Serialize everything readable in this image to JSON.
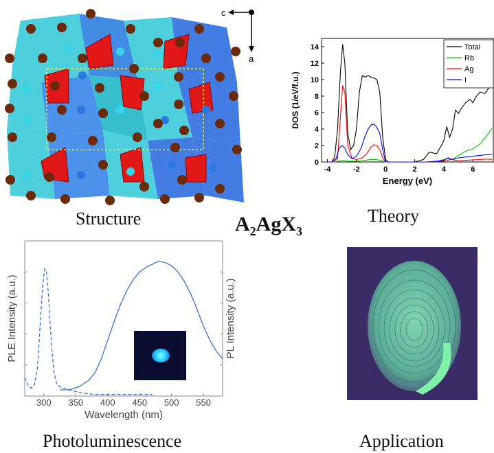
{
  "formula": {
    "base1": "A",
    "sub1": "2",
    "base2": "AgX",
    "sub2": "3"
  },
  "captions": {
    "structure": "Structure",
    "theory": "Theory",
    "photoluminescence": "Photoluminescence",
    "application": "Application"
  },
  "structure": {
    "axis_c": "c",
    "axis_a": "a"
  },
  "chart_data": [
    {
      "type": "line",
      "xlabel": "Energy (eV)",
      "ylabel": "DOS (1/eV/f.u.)",
      "xlim": [
        -4.4,
        7.4
      ],
      "ylim": [
        0,
        15
      ],
      "xticks": [
        -4,
        -2,
        0,
        2,
        4,
        6
      ],
      "yticks": [
        0,
        2,
        4,
        6,
        8,
        10,
        12,
        14
      ],
      "legend_position": "top-right",
      "series": [
        {
          "name": "Total",
          "color": "#000000",
          "x": [
            -4.2,
            -3.7,
            -3.5,
            -3.3,
            -3.1,
            -2.95,
            -2.8,
            -2.6,
            -2.4,
            -2.2,
            -2.0,
            -1.8,
            -1.6,
            -1.4,
            -1.2,
            -1.0,
            -0.8,
            -0.6,
            -0.4,
            -0.2,
            0.0,
            0.2,
            1.0,
            2.0,
            2.6,
            3.0,
            3.5,
            3.8,
            4.0,
            4.2,
            4.4,
            4.6,
            4.8,
            5.0,
            5.2,
            5.5,
            5.8,
            6.0,
            6.2,
            6.5,
            6.8,
            7.1,
            7.3
          ],
          "y": [
            0,
            0,
            0.6,
            4,
            11,
            14.3,
            12,
            3.5,
            1.5,
            2,
            4,
            8.5,
            10.5,
            10.3,
            10.5,
            10.3,
            10.2,
            10.0,
            8.5,
            3,
            0.3,
            0,
            0,
            0,
            0.3,
            1.2,
            1.0,
            1.9,
            2.6,
            4.3,
            3.0,
            4.0,
            6.3,
            5.9,
            6.5,
            7.2,
            7.6,
            7.2,
            7.9,
            8.5,
            8.3,
            9.0,
            9.1
          ]
        },
        {
          "name": "Rb",
          "color": "#00c000",
          "x": [
            -4.2,
            -3.5,
            -3.2,
            -2.9,
            -2.6,
            -2.2,
            -1.8,
            -1.4,
            -1.0,
            -0.6,
            -0.2,
            0.0,
            2.8,
            3.6,
            4.2,
            4.6,
            5.0,
            5.5,
            6.0,
            6.5,
            7.0,
            7.3
          ],
          "y": [
            0,
            0,
            0.1,
            0.2,
            0.1,
            0.1,
            0.1,
            0.2,
            0.3,
            0.3,
            0.1,
            0,
            0,
            0.1,
            0.4,
            0.3,
            0.8,
            1.3,
            1.6,
            2.2,
            3.3,
            4.1
          ]
        },
        {
          "name": "Ag",
          "color": "#ff0000",
          "x": [
            -4.2,
            -3.6,
            -3.3,
            -3.1,
            -2.95,
            -2.8,
            -2.6,
            -2.3,
            -2.0,
            -1.6,
            -1.3,
            -1.0,
            -0.8,
            -0.6,
            -0.4,
            -0.2,
            0.0,
            2.8,
            3.5,
            4.0,
            4.5,
            5.0,
            5.5,
            6.0,
            6.5,
            7.0,
            7.3
          ],
          "y": [
            0,
            0,
            0.4,
            5.5,
            9.3,
            8.5,
            2,
            0.4,
            0.3,
            0.5,
            1,
            1.8,
            2.1,
            2.0,
            1.5,
            0.5,
            0,
            0,
            0.05,
            0.1,
            0.3,
            0.15,
            0.2,
            0.25,
            0.3,
            0.35,
            0.3
          ]
        },
        {
          "name": "I",
          "color": "#0000ff",
          "x": [
            -4.2,
            -3.7,
            -3.4,
            -3.2,
            -3.0,
            -2.8,
            -2.6,
            -2.3,
            -2.0,
            -1.7,
            -1.4,
            -1.2,
            -1.0,
            -0.8,
            -0.6,
            -0.4,
            -0.2,
            0.0,
            2.8,
            3.5,
            4.0,
            4.3,
            4.6,
            5.0,
            5.5,
            6.0,
            6.5,
            7.0,
            7.3
          ],
          "y": [
            0,
            0,
            0.4,
            1.6,
            2.0,
            1.7,
            0.9,
            0.4,
            0.7,
            1.6,
            3.2,
            4.0,
            4.5,
            4.6,
            4.2,
            3.5,
            1.5,
            0,
            0,
            0.1,
            0.2,
            0.5,
            0.3,
            0.5,
            0.6,
            0.7,
            0.8,
            0.9,
            0.9
          ]
        }
      ]
    },
    {
      "type": "line",
      "xlabel": "Wavelength (nm)",
      "ylabel_left": "PLE Intensity (a.u.)",
      "ylabel_right": "PL Intensity (a.u.)",
      "xlim": [
        270,
        580
      ],
      "ylim": [
        0,
        1
      ],
      "xticks": [
        300,
        350,
        400,
        450,
        500,
        550
      ],
      "series": [
        {
          "name": "PLE",
          "style": "dashed",
          "color": "#3a6fd0",
          "x": [
            270,
            275,
            280,
            285,
            290,
            294,
            298,
            301,
            304,
            307,
            310,
            313,
            316,
            320,
            325,
            330,
            335,
            340,
            350,
            360,
            380,
            400,
            430,
            460,
            470
          ],
          "y": [
            0.12,
            0.07,
            0.05,
            0.07,
            0.18,
            0.45,
            0.7,
            0.82,
            0.8,
            0.66,
            0.45,
            0.28,
            0.15,
            0.08,
            0.06,
            0.05,
            0.05,
            0.04,
            0.03,
            0.02,
            0.01,
            0.01,
            0.01,
            0.01,
            0.01
          ]
        },
        {
          "name": "PL",
          "style": "solid",
          "color": "#3a6fd0",
          "x": [
            325,
            340,
            355,
            370,
            380,
            390,
            400,
            410,
            420,
            430,
            440,
            450,
            460,
            470,
            480,
            490,
            500,
            510,
            520,
            530,
            540,
            550,
            560,
            570,
            580
          ],
          "y": [
            0.04,
            0.04,
            0.06,
            0.1,
            0.15,
            0.24,
            0.36,
            0.48,
            0.59,
            0.68,
            0.75,
            0.8,
            0.83,
            0.85,
            0.87,
            0.86,
            0.84,
            0.8,
            0.74,
            0.66,
            0.56,
            0.45,
            0.36,
            0.29,
            0.24
          ]
        }
      ]
    }
  ]
}
